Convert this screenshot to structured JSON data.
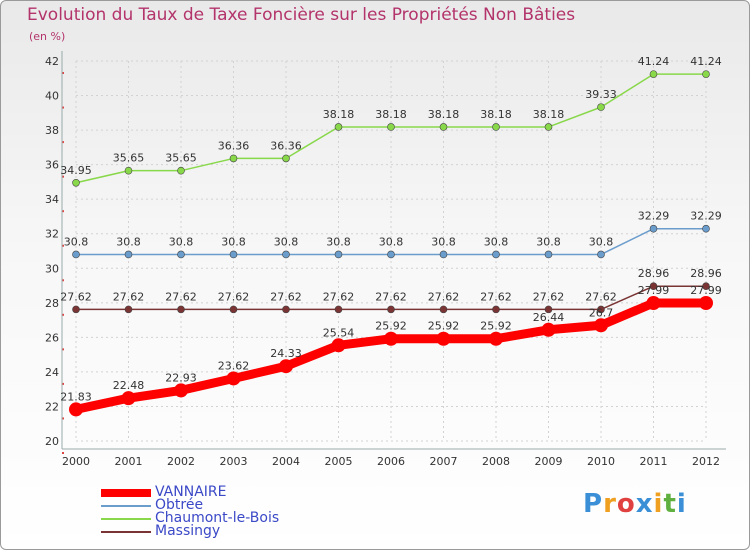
{
  "chart_data": {
    "type": "line",
    "title": "Evolution du Taux de Taxe Foncière sur les Propriétés Non Bâties",
    "ylabel": "(en %)",
    "xlabel": "",
    "categories": [
      "2000",
      "2001",
      "2002",
      "2003",
      "2004",
      "2005",
      "2006",
      "2007",
      "2008",
      "2009",
      "2010",
      "2011",
      "2012"
    ],
    "ylim": [
      20,
      42
    ],
    "yticks": [
      20,
      22,
      24,
      26,
      28,
      30,
      32,
      34,
      36,
      38,
      40,
      42
    ],
    "grid": true,
    "series": [
      {
        "name": "Chaumont-le-Bois",
        "color": "#88d84a",
        "values": [
          34.95,
          35.65,
          35.65,
          36.36,
          36.36,
          38.18,
          38.18,
          38.18,
          38.18,
          38.18,
          39.33,
          41.24,
          41.24
        ],
        "labels": [
          "34.95",
          "35.65",
          "35.65",
          "36.36",
          "36.36",
          "38.18",
          "38.18",
          "38.18",
          "38.18",
          "38.18",
          "39.33",
          "41.24",
          "41.24"
        ]
      },
      {
        "name": "Obtrée",
        "color": "#6a9ccc",
        "values": [
          30.8,
          30.8,
          30.8,
          30.8,
          30.8,
          30.8,
          30.8,
          30.8,
          30.8,
          30.8,
          30.8,
          32.29,
          32.29
        ],
        "labels": [
          "30.8",
          "30.8",
          "30.8",
          "30.8",
          "30.8",
          "30.8",
          "30.8",
          "30.8",
          "30.8",
          "30.8",
          "30.8",
          "32.29",
          "32.29"
        ]
      },
      {
        "name": "Massingy",
        "color": "#7a3434",
        "values": [
          27.62,
          27.62,
          27.62,
          27.62,
          27.62,
          27.62,
          27.62,
          27.62,
          27.62,
          27.62,
          27.62,
          28.96,
          28.96
        ],
        "labels": [
          "27.62",
          "27.62",
          "27.62",
          "27.62",
          "27.62",
          "27.62",
          "27.62",
          "27.62",
          "27.62",
          "27.62",
          "27.62",
          "28.96",
          "28.96"
        ]
      },
      {
        "name": "VANNAIRE",
        "color": "#ff0000",
        "values": [
          21.83,
          22.48,
          22.93,
          23.62,
          24.33,
          25.54,
          25.92,
          25.92,
          25.92,
          26.44,
          26.7,
          27.99,
          27.99
        ],
        "labels": [
          "21.83",
          "22.48",
          "22.93",
          "23.62",
          "24.33",
          "25.54",
          "25.92",
          "25.92",
          "25.92",
          "26.44",
          "26.7",
          "27.99",
          "27.99"
        ]
      }
    ]
  },
  "legend": [
    {
      "name": "VANNAIRE",
      "color": "#ff0000",
      "thick": true
    },
    {
      "name": "Obtrée",
      "color": "#6a9ccc",
      "thick": false
    },
    {
      "name": "Chaumont-le-Bois",
      "color": "#88d84a",
      "thick": false
    },
    {
      "name": "Massingy",
      "color": "#7a3434",
      "thick": false
    }
  ],
  "logo": {
    "letters": [
      "P",
      "r",
      "o",
      "x",
      "i",
      "t",
      "i"
    ],
    "colors": [
      "#3a8fd6",
      "#f0a020",
      "#e04040",
      "#3a8fd6",
      "#f0a020",
      "#60b040",
      "#3a8fd6"
    ]
  }
}
